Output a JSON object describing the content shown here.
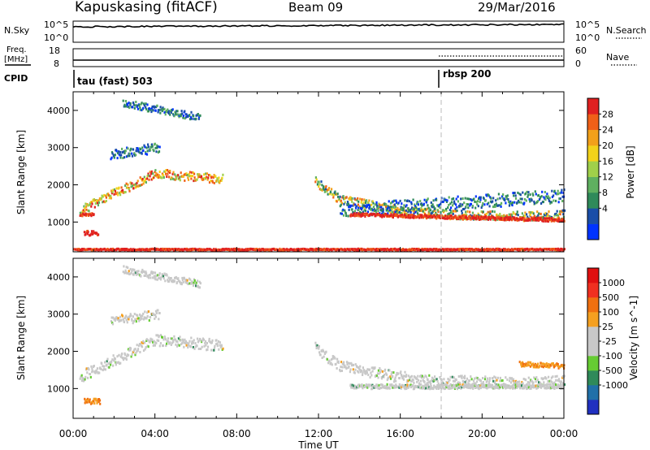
{
  "header": {
    "station": "Kapuskasing (fitACF)",
    "beam": "Beam 09",
    "date": "29/Mar/2016"
  },
  "strips": {
    "nsky_label": "N.Sky",
    "nsky_ticks": [
      "10^5",
      "10^0"
    ],
    "nsearch_ticks": [
      "10^5",
      "10^0"
    ],
    "nsearch_label": "N.Search",
    "freq_label_line1": "Freq.",
    "freq_label_line2": "[MHz]",
    "freq_ticks": [
      "18",
      "8"
    ],
    "nave_ticks": [
      "60",
      "0"
    ],
    "nave_label": "Nave",
    "cpid_label": "CPID",
    "cpid_segments": [
      "tau (fast) 503",
      "rbsp 200"
    ]
  },
  "colors": {
    "background": "#ffffff",
    "grid_dashed": "#bbbbbb"
  },
  "chart_data": [
    {
      "type": "heatmap",
      "panel": "power",
      "ylabel": "Slant Range [km]",
      "yticks": [
        "1000",
        "2000",
        "3000",
        "4000"
      ],
      "ylim": [
        200,
        4500
      ],
      "colorbar_label": "Power [dB]",
      "colorbar_ticks": [
        "28",
        "24",
        "20",
        "16",
        "12",
        "8",
        "4"
      ],
      "colorbar_colors": [
        "#0033ff",
        "#1a4ea8",
        "#2f8a5a",
        "#5fb060",
        "#a0d04a",
        "#f2d21a",
        "#f2a01a",
        "#f06018",
        "#e02020"
      ],
      "bands": [
        {
          "t": [
            0.3,
            4.0,
            7.3
          ],
          "r": [
            1300,
            2300,
            2150
          ],
          "w": 250,
          "level": "high"
        },
        {
          "t": [
            0.3,
            1.0
          ],
          "r": [
            1200,
            1200
          ],
          "w": 80,
          "level": "max"
        },
        {
          "t": [
            0.5,
            1.2
          ],
          "r": [
            700,
            700
          ],
          "w": 120,
          "level": "max"
        },
        {
          "t": [
            1.8,
            4.2
          ],
          "r": [
            2800,
            3000
          ],
          "w": 260,
          "level": "low"
        },
        {
          "t": [
            2.4,
            6.2
          ],
          "r": [
            4200,
            3800
          ],
          "w": 200,
          "level": "low"
        },
        {
          "t": [
            11.8,
            13.0,
            16.0,
            18.0,
            22.0,
            24.0
          ],
          "r": [
            2100,
            1600,
            1300,
            1200,
            1150,
            1200
          ],
          "w": 240,
          "level": "mid"
        },
        {
          "t": [
            13.0,
            24.0
          ],
          "r": [
            1300,
            1700
          ],
          "w": 350,
          "level": "low"
        },
        {
          "t": [
            13.5,
            24.0
          ],
          "r": [
            1200,
            1050
          ],
          "w": 90,
          "level": "max"
        },
        {
          "t": [
            0.0,
            24.0
          ],
          "r": [
            260,
            260
          ],
          "w": 40,
          "level": "max"
        }
      ],
      "cpid_change_time": 18.0
    },
    {
      "type": "heatmap",
      "panel": "velocity",
      "ylabel": "Slant Range [km]",
      "yticks": [
        "1000",
        "2000",
        "3000",
        "4000"
      ],
      "ylim": [
        200,
        4500
      ],
      "colorbar_label": "Velocity [m s^-1]",
      "colorbar_ticks": [
        "1000",
        "500",
        "100",
        "25",
        "-25",
        "-100",
        "-500",
        "-1000"
      ],
      "colorbar_colors": [
        "#2030c0",
        "#2070a8",
        "#2f8a5a",
        "#66cc33",
        "#c8c8c8",
        "#c8c8c8",
        "#f5a020",
        "#f07010",
        "#f03020",
        "#e01010"
      ],
      "bands": [
        {
          "t": [
            0.3,
            4.0,
            7.3
          ],
          "r": [
            1300,
            2300,
            2150
          ],
          "w": 300,
          "level": "ground"
        },
        {
          "t": [
            1.8,
            4.2
          ],
          "r": [
            2800,
            3000
          ],
          "w": 260,
          "level": "ground"
        },
        {
          "t": [
            2.4,
            6.2
          ],
          "r": [
            4200,
            3800
          ],
          "w": 200,
          "level": "ground"
        },
        {
          "t": [
            11.8,
            13.0,
            16.0,
            18.0,
            22.0,
            24.0
          ],
          "r": [
            2100,
            1600,
            1300,
            1200,
            1150,
            1200
          ],
          "w": 300,
          "level": "ground"
        },
        {
          "t": [
            13.5,
            24.0
          ],
          "r": [
            1050,
            1050
          ],
          "w": 120,
          "level": "ground"
        },
        {
          "t": [
            21.8,
            24.0
          ],
          "r": [
            1650,
            1600
          ],
          "w": 130,
          "level": "neg"
        },
        {
          "t": [
            0.5,
            1.3
          ],
          "r": [
            650,
            650
          ],
          "w": 140,
          "level": "neg"
        }
      ]
    }
  ],
  "time_axis": {
    "xlabel": "Time UT",
    "ticks": [
      "00:00",
      "04:00",
      "08:00",
      "12:00",
      "16:00",
      "20:00",
      "00:00"
    ],
    "range_hours": [
      0,
      24
    ]
  }
}
